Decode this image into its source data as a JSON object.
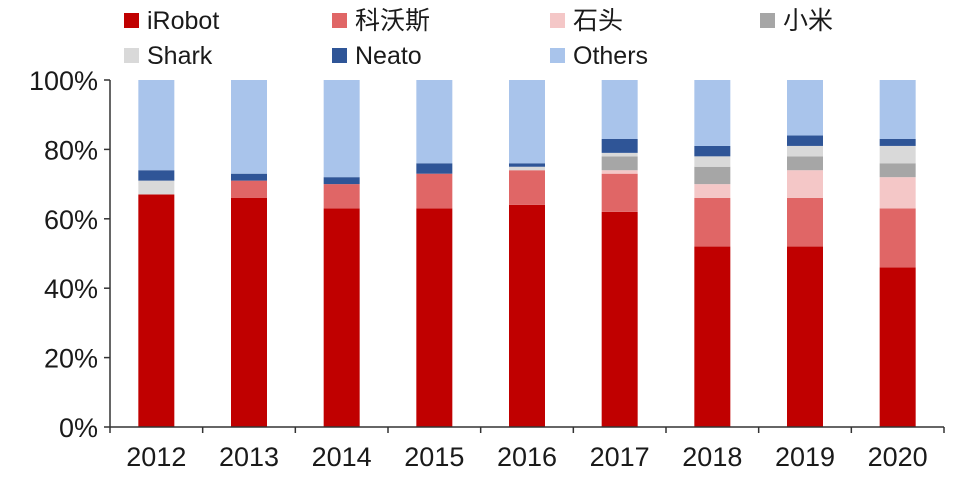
{
  "chart_data": {
    "type": "bar",
    "stacked": true,
    "categories": [
      "2012",
      "2013",
      "2014",
      "2015",
      "2016",
      "2017",
      "2018",
      "2019",
      "2020"
    ],
    "series": [
      {
        "name": "iRobot",
        "color": "#C00000",
        "values": [
          67,
          66,
          63,
          63,
          64,
          62,
          52,
          52,
          46
        ]
      },
      {
        "name": "科沃斯",
        "color": "#E06666",
        "values": [
          0,
          5,
          7,
          10,
          10,
          11,
          14,
          14,
          17
        ]
      },
      {
        "name": "石头",
        "color": "#F4C7C7",
        "values": [
          0,
          0,
          0,
          0,
          0,
          1,
          4,
          8,
          9
        ]
      },
      {
        "name": "小米",
        "color": "#A6A6A6",
        "values": [
          0,
          0,
          0,
          0,
          0,
          4,
          5,
          4,
          4
        ]
      },
      {
        "name": "Shark",
        "color": "#D9D9D9",
        "values": [
          4,
          0,
          0,
          0,
          1,
          1,
          3,
          3,
          5
        ]
      },
      {
        "name": "Neato",
        "color": "#2F5597",
        "values": [
          3,
          2,
          2,
          3,
          1,
          4,
          3,
          3,
          2
        ]
      },
      {
        "name": "Others",
        "color": "#A9C4EB",
        "values": [
          26,
          27,
          28,
          24,
          24,
          17,
          19,
          16,
          17
        ]
      }
    ],
    "y_ticks": [
      "0%",
      "20%",
      "40%",
      "60%",
      "80%",
      "100%"
    ],
    "ylim": [
      0,
      100
    ],
    "title": "",
    "xlabel": "",
    "ylabel": "",
    "grid": false,
    "legend_position": "top"
  }
}
